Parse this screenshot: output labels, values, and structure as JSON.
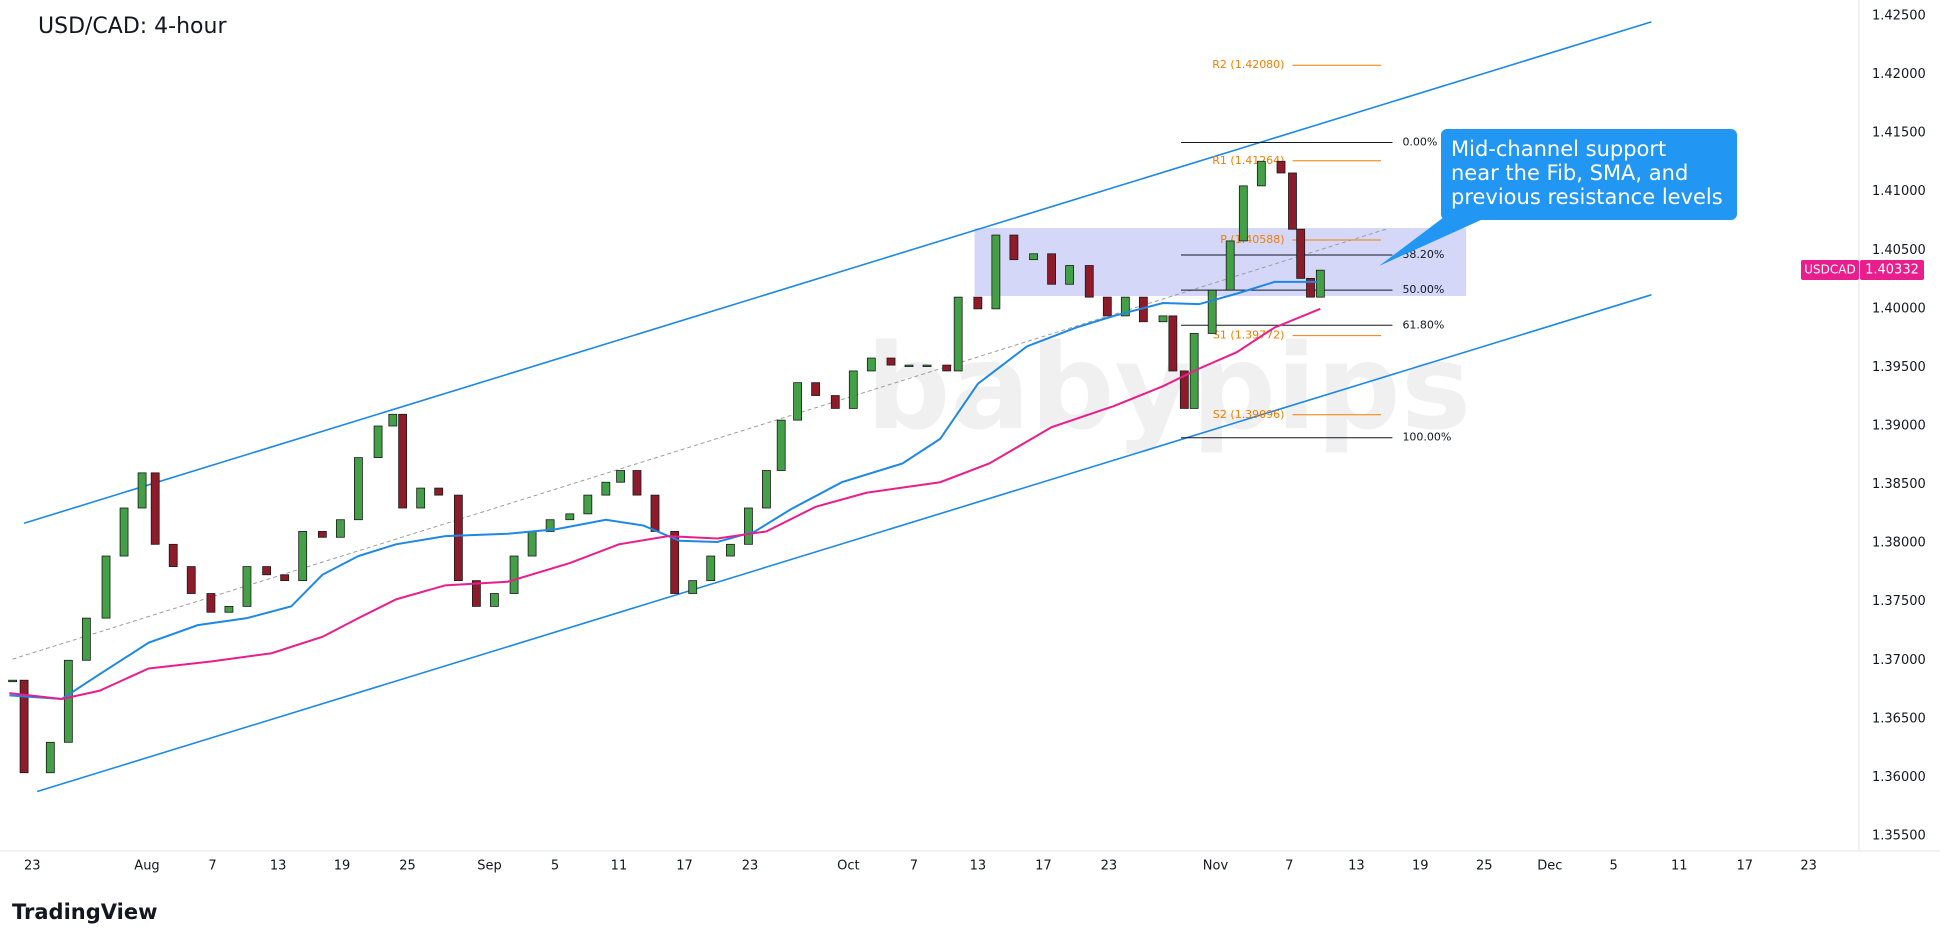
{
  "chart_data": {
    "type": "candlestick",
    "title": "USD/CAD: 4-hour",
    "xlim": [
      -1.36,
      111.47
    ],
    "ylim": [
      1.355,
      1.425
    ],
    "yticks": [
      {
        "value": 1.355,
        "label": "1.35500"
      },
      {
        "value": 1.36,
        "label": "1.36000"
      },
      {
        "value": 1.365,
        "label": "1.36500"
      },
      {
        "value": 1.37,
        "label": "1.37000"
      },
      {
        "value": 1.375,
        "label": "1.37500"
      },
      {
        "value": 1.38,
        "label": "1.38000"
      },
      {
        "value": 1.385,
        "label": "1.38500"
      },
      {
        "value": 1.39,
        "label": "1.39000"
      },
      {
        "value": 1.395,
        "label": "1.39500"
      },
      {
        "value": 1.4,
        "label": "1.40000"
      },
      {
        "value": 1.405,
        "label": "1.40500"
      },
      {
        "value": 1.41,
        "label": "1.41000"
      },
      {
        "value": 1.415,
        "label": "1.41500"
      },
      {
        "value": 1.42,
        "label": "1.42000"
      },
      {
        "value": 1.425,
        "label": "1.42500"
      }
    ],
    "xticks": [
      {
        "value": 0,
        "label": "23"
      },
      {
        "value": 7,
        "label": "Aug"
      },
      {
        "value": 11,
        "label": "7"
      },
      {
        "value": 15,
        "label": "13"
      },
      {
        "value": 18.9,
        "label": "19"
      },
      {
        "value": 22.9,
        "label": "25"
      },
      {
        "value": 27.9,
        "label": "Sep"
      },
      {
        "value": 31.9,
        "label": "5"
      },
      {
        "value": 35.8,
        "label": "11"
      },
      {
        "value": 39.8,
        "label": "17"
      },
      {
        "value": 43.8,
        "label": "23"
      },
      {
        "value": 49.8,
        "label": "Oct"
      },
      {
        "value": 53.8,
        "label": "7"
      },
      {
        "value": 57.7,
        "label": "13"
      },
      {
        "value": 61.7,
        "label": "17"
      },
      {
        "value": 65.7,
        "label": "23"
      },
      {
        "value": 72.2,
        "label": "Nov"
      },
      {
        "value": 76.7,
        "label": "7"
      },
      {
        "value": 80.8,
        "label": "13"
      },
      {
        "value": 84.7,
        "label": "19"
      },
      {
        "value": 88.6,
        "label": "25"
      },
      {
        "value": 92.6,
        "label": "Dec"
      },
      {
        "value": 96.5,
        "label": "5"
      },
      {
        "value": 100.5,
        "label": "11"
      },
      {
        "value": 104.5,
        "label": "17"
      },
      {
        "value": 108.4,
        "label": "23"
      }
    ],
    "price": {
      "up_color": "#43a047",
      "down_color": "#8e1b2a",
      "x": [
        -1.2,
        -0.5,
        1.1,
        2.2,
        3.3,
        4.5,
        5.6,
        6.7,
        7.5,
        8.6,
        9.7,
        10.9,
        12,
        13.1,
        14.3,
        15.4,
        16.5,
        17.7,
        18.8,
        19.9,
        21.1,
        22,
        22.6,
        23.7,
        24.8,
        26,
        27.1,
        28.2,
        29.4,
        30.5,
        31.6,
        32.8,
        33.9,
        35,
        35.9,
        36.9,
        38,
        39.2,
        40.3,
        41.4,
        42.6,
        43.7,
        44.8,
        45.7,
        46.7,
        47.8,
        49,
        50.1,
        51.2,
        52.4,
        53.5,
        54.6,
        55.8,
        56.5,
        57.7,
        58.8,
        59.9,
        61.1,
        62.2,
        63.3,
        64.5,
        65.6,
        66.7,
        67.8,
        69,
        69.6,
        70.3,
        70.9,
        72,
        73.1,
        73.9,
        75,
        76.2,
        76.9,
        77.4,
        78,
        78.6
      ],
      "values": [
        1.3683,
        1.3604,
        1.363,
        1.37,
        1.3736,
        1.3789,
        1.383,
        1.386,
        1.3799,
        1.378,
        1.3757,
        1.3741,
        1.3746,
        1.378,
        1.3773,
        1.3768,
        1.381,
        1.3805,
        1.382,
        1.3873,
        1.39,
        1.391,
        1.383,
        1.3847,
        1.3841,
        1.3768,
        1.3746,
        1.3757,
        1.3789,
        1.381,
        1.382,
        1.3825,
        1.3841,
        1.3852,
        1.3862,
        1.3841,
        1.381,
        1.3757,
        1.3768,
        1.3789,
        1.3799,
        1.383,
        1.3862,
        1.3905,
        1.3937,
        1.3926,
        1.3915,
        1.3947,
        1.3958,
        1.3952,
        1.3952,
        1.3952,
        1.3947,
        1.401,
        1.4,
        1.4063,
        1.4042,
        1.4047,
        1.4021,
        1.4037,
        1.401,
        1.3994,
        1.401,
        1.3989,
        1.3994,
        1.3947,
        1.3915,
        1.3979,
        1.4016,
        1.4058,
        1.4105,
        1.4126,
        1.4116,
        1.4068,
        1.4026,
        1.401,
        1.4033
      ]
    },
    "moving_averages": [
      {
        "color": "#1e88e5",
        "x": [
          -1.4,
          1.8,
          4.1,
          7.1,
          10.1,
          13.1,
          15.8,
          17.7,
          19.9,
          22.2,
          25.2,
          29,
          32,
          35,
          37.3,
          39.5,
          41.8,
          44.1,
          46.3,
          49.4,
          53.1,
          55.4,
          57.7,
          60.7,
          63.7,
          66,
          69,
          71.2,
          73.5,
          75.8,
          78.4
        ],
        "values": [
          1.367,
          1.3667,
          1.3688,
          1.3715,
          1.373,
          1.3736,
          1.3746,
          1.3773,
          1.3789,
          1.3799,
          1.3806,
          1.3808,
          1.3812,
          1.382,
          1.3815,
          1.3802,
          1.3801,
          1.381,
          1.3829,
          1.3852,
          1.3868,
          1.3889,
          1.3936,
          1.3968,
          1.3984,
          1.3994,
          1.4005,
          1.4004,
          1.4013,
          1.4023,
          1.4023
        ]
      },
      {
        "color": "#e91e8c",
        "x": [
          -1.4,
          1.8,
          4.1,
          7.1,
          10.9,
          14.6,
          17.7,
          19.9,
          22.2,
          25.2,
          29,
          32.8,
          35.8,
          38.8,
          41.8,
          44.8,
          47.8,
          50.9,
          55.4,
          58.4,
          62.2,
          66,
          69,
          71.2,
          73.5,
          75.8,
          78.6
        ],
        "values": [
          1.3672,
          1.3667,
          1.3674,
          1.3693,
          1.3699,
          1.3706,
          1.372,
          1.3736,
          1.3752,
          1.3764,
          1.3767,
          1.3783,
          1.3799,
          1.3806,
          1.3804,
          1.381,
          1.3831,
          1.3843,
          1.3852,
          1.3868,
          1.3899,
          1.3917,
          1.3934,
          1.3949,
          1.3963,
          1.3984,
          1.4
        ]
      }
    ],
    "channels": [
      {
        "color": "#1e88e5",
        "x": [
          -0.5,
          98.8
        ],
        "values": [
          1.3817,
          1.4245
        ]
      },
      {
        "color": "#1e88e5",
        "x": [
          0.3,
          98.8
        ],
        "values": [
          1.3588,
          1.4012
        ]
      }
    ],
    "midline": {
      "color": "#9e9e9e",
      "x": [
        -1.2,
        82.6
      ],
      "values": [
        1.3701,
        1.4068
      ]
    },
    "zone": {
      "color": "#c5caf5",
      "x": [
        57.5,
        87.5
      ],
      "values": [
        1.4011,
        1.4069
      ]
    },
    "fib_x": [
      70.1,
      83
    ],
    "fib_levels": [
      {
        "value": 1.4142,
        "label": "0.00%"
      },
      {
        "value": 1.4046,
        "label": "38.20%"
      },
      {
        "value": 1.4016,
        "label": "50.00%"
      },
      {
        "value": 1.3986,
        "label": "61.80%"
      },
      {
        "value": 1.389,
        "label": "100.00%"
      }
    ],
    "pivot_color": "#f57c00",
    "pivot_x": [
      76.9,
      82.3
    ],
    "pivots": [
      {
        "value": 1.4208,
        "label": "R2 (1.42080)"
      },
      {
        "value": 1.41264,
        "label": "R1 (1.41264)"
      },
      {
        "value": 1.40588,
        "label": "P (1.40588)"
      },
      {
        "value": 1.39772,
        "label": "S1 (1.39772)"
      },
      {
        "value": 1.39096,
        "label": "S2 (1.39096)"
      }
    ],
    "last": {
      "name": "USDCAD",
      "value": 1.40332,
      "color": "#e91e8c"
    },
    "annotation": [
      "Mid-channel support",
      "near the Fib, SMA, and",
      "previous resistance levels"
    ],
    "watermark": "babypips",
    "footer": "TradingView"
  }
}
